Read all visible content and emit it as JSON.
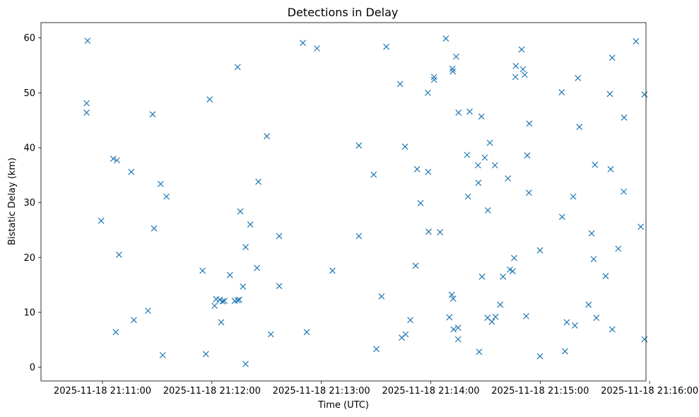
{
  "chart_data": {
    "type": "scatter",
    "title": "Detections in Delay",
    "xlabel": "Time (UTC)",
    "ylabel": "Bistatic Delay (km)",
    "x_unit": "seconds after 2025-11-18 21:11:00",
    "xlim": [
      -33.7,
      298
    ],
    "ylim": [
      -2.5,
      62.8
    ],
    "xticks": [
      {
        "value": 0,
        "label": "2025-11-18 21:11:00"
      },
      {
        "value": 60,
        "label": "2025-11-18 21:12:00"
      },
      {
        "value": 120,
        "label": "2025-11-18 21:13:00"
      },
      {
        "value": 180,
        "label": "2025-11-18 21:14:00"
      },
      {
        "value": 240,
        "label": "2025-11-18 21:15:00"
      },
      {
        "value": 300,
        "label": "2025-11-18 21:16:00"
      }
    ],
    "yticks": [
      {
        "value": 0,
        "label": "0"
      },
      {
        "value": 10,
        "label": "10"
      },
      {
        "value": 20,
        "label": "20"
      },
      {
        "value": 30,
        "label": "30"
      },
      {
        "value": 40,
        "label": "40"
      },
      {
        "value": 50,
        "label": "50"
      },
      {
        "value": 60,
        "label": "60"
      }
    ],
    "marker": "x",
    "color": "#1f77b4",
    "series": [
      {
        "name": "detections",
        "points": [
          [
            -8.2,
            59.5
          ],
          [
            -8.7,
            48.1
          ],
          [
            -8.7,
            46.4
          ],
          [
            -0.7,
            26.7
          ],
          [
            5.9,
            38.0
          ],
          [
            7.9,
            37.7
          ],
          [
            7.3,
            6.4
          ],
          [
            9.1,
            20.5
          ],
          [
            15.8,
            35.6
          ],
          [
            17.2,
            8.6
          ],
          [
            25.0,
            10.3
          ],
          [
            27.5,
            46.1
          ],
          [
            28.3,
            25.3
          ],
          [
            31.9,
            33.4
          ],
          [
            33.0,
            2.2
          ],
          [
            35.1,
            31.1
          ],
          [
            54.9,
            17.6
          ],
          [
            56.7,
            2.4
          ],
          [
            58.8,
            48.8
          ],
          [
            61.5,
            11.2
          ],
          [
            62.3,
            12.4
          ],
          [
            64.3,
            12.3
          ],
          [
            65.1,
            8.2
          ],
          [
            65.8,
            12.0
          ],
          [
            66.8,
            12.1
          ],
          [
            69.9,
            16.8
          ],
          [
            72.5,
            12.1
          ],
          [
            74.1,
            12.2
          ],
          [
            75.0,
            12.3
          ],
          [
            74.1,
            54.7
          ],
          [
            75.6,
            28.4
          ],
          [
            77.0,
            14.7
          ],
          [
            78.5,
            21.9
          ],
          [
            78.5,
            0.6
          ],
          [
            81.1,
            26.0
          ],
          [
            84.7,
            18.1
          ],
          [
            85.5,
            33.8
          ],
          [
            90.1,
            42.1
          ],
          [
            92.3,
            6.0
          ],
          [
            96.9,
            23.9
          ],
          [
            96.9,
            14.8
          ],
          [
            109.9,
            59.1
          ],
          [
            112.0,
            6.4
          ],
          [
            117.6,
            58.1
          ],
          [
            126.1,
            17.6
          ],
          [
            140.6,
            40.4
          ],
          [
            140.6,
            23.9
          ],
          [
            148.7,
            35.1
          ],
          [
            150.2,
            3.3
          ],
          [
            153.0,
            12.9
          ],
          [
            155.6,
            58.4
          ],
          [
            163.2,
            51.6
          ],
          [
            165.9,
            40.2
          ],
          [
            164.1,
            5.4
          ],
          [
            166.2,
            6.0
          ],
          [
            168.8,
            8.6
          ],
          [
            171.7,
            18.5
          ],
          [
            172.5,
            36.1
          ],
          [
            174.4,
            29.9
          ],
          [
            178.4,
            50.0
          ],
          [
            178.6,
            35.6
          ],
          [
            178.8,
            24.7
          ],
          [
            181.8,
            52.9
          ],
          [
            181.8,
            52.4
          ],
          [
            185.1,
            24.6
          ],
          [
            188.3,
            59.9
          ],
          [
            190.2,
            9.1
          ],
          [
            191.9,
            54.4
          ],
          [
            192.1,
            53.9
          ],
          [
            191.5,
            13.2
          ],
          [
            192.3,
            12.5
          ],
          [
            192.5,
            6.9
          ],
          [
            193.9,
            56.6
          ],
          [
            195.2,
            46.4
          ],
          [
            195.0,
            7.2
          ],
          [
            195.0,
            5.1
          ],
          [
            199.9,
            38.7
          ],
          [
            200.4,
            31.1
          ],
          [
            201.3,
            46.6
          ],
          [
            205.9,
            36.8
          ],
          [
            206.1,
            33.6
          ],
          [
            206.5,
            2.8
          ],
          [
            207.8,
            45.7
          ],
          [
            208.1,
            16.5
          ],
          [
            209.6,
            38.2
          ],
          [
            211.3,
            28.6
          ],
          [
            211.1,
            9.0
          ],
          [
            212.4,
            40.9
          ],
          [
            213.5,
            8.3
          ],
          [
            215.2,
            36.8
          ],
          [
            215.5,
            9.2
          ],
          [
            218.1,
            11.4
          ],
          [
            219.6,
            16.5
          ],
          [
            222.3,
            34.4
          ],
          [
            223.4,
            17.8
          ],
          [
            224.9,
            17.5
          ],
          [
            225.7,
            19.9
          ],
          [
            226.4,
            52.9
          ],
          [
            226.6,
            54.9
          ],
          [
            230.5,
            54.3
          ],
          [
            229.8,
            57.9
          ],
          [
            231.5,
            53.3
          ],
          [
            232.3,
            9.3
          ],
          [
            232.9,
            38.6
          ],
          [
            234.0,
            44.4
          ],
          [
            233.8,
            31.8
          ],
          [
            239.9,
            21.3
          ],
          [
            239.9,
            2.0
          ],
          [
            251.8,
            50.1
          ],
          [
            252.0,
            27.4
          ],
          [
            253.6,
            2.9
          ],
          [
            254.6,
            8.2
          ],
          [
            258.1,
            31.1
          ],
          [
            259.0,
            7.6
          ],
          [
            260.7,
            52.7
          ],
          [
            261.5,
            43.8
          ],
          [
            266.5,
            11.4
          ],
          [
            268.2,
            24.4
          ],
          [
            269.3,
            19.7
          ],
          [
            270.0,
            36.9
          ],
          [
            270.8,
            9.0
          ],
          [
            275.9,
            16.6
          ],
          [
            278.2,
            49.8
          ],
          [
            278.6,
            36.1
          ],
          [
            279.5,
            56.4
          ],
          [
            279.5,
            6.9
          ],
          [
            282.8,
            21.6
          ],
          [
            285.8,
            32.0
          ],
          [
            286.0,
            45.5
          ],
          [
            292.5,
            59.4
          ],
          [
            295.1,
            25.6
          ],
          [
            297.2,
            49.7
          ],
          [
            297.2,
            5.1
          ]
        ]
      }
    ]
  }
}
